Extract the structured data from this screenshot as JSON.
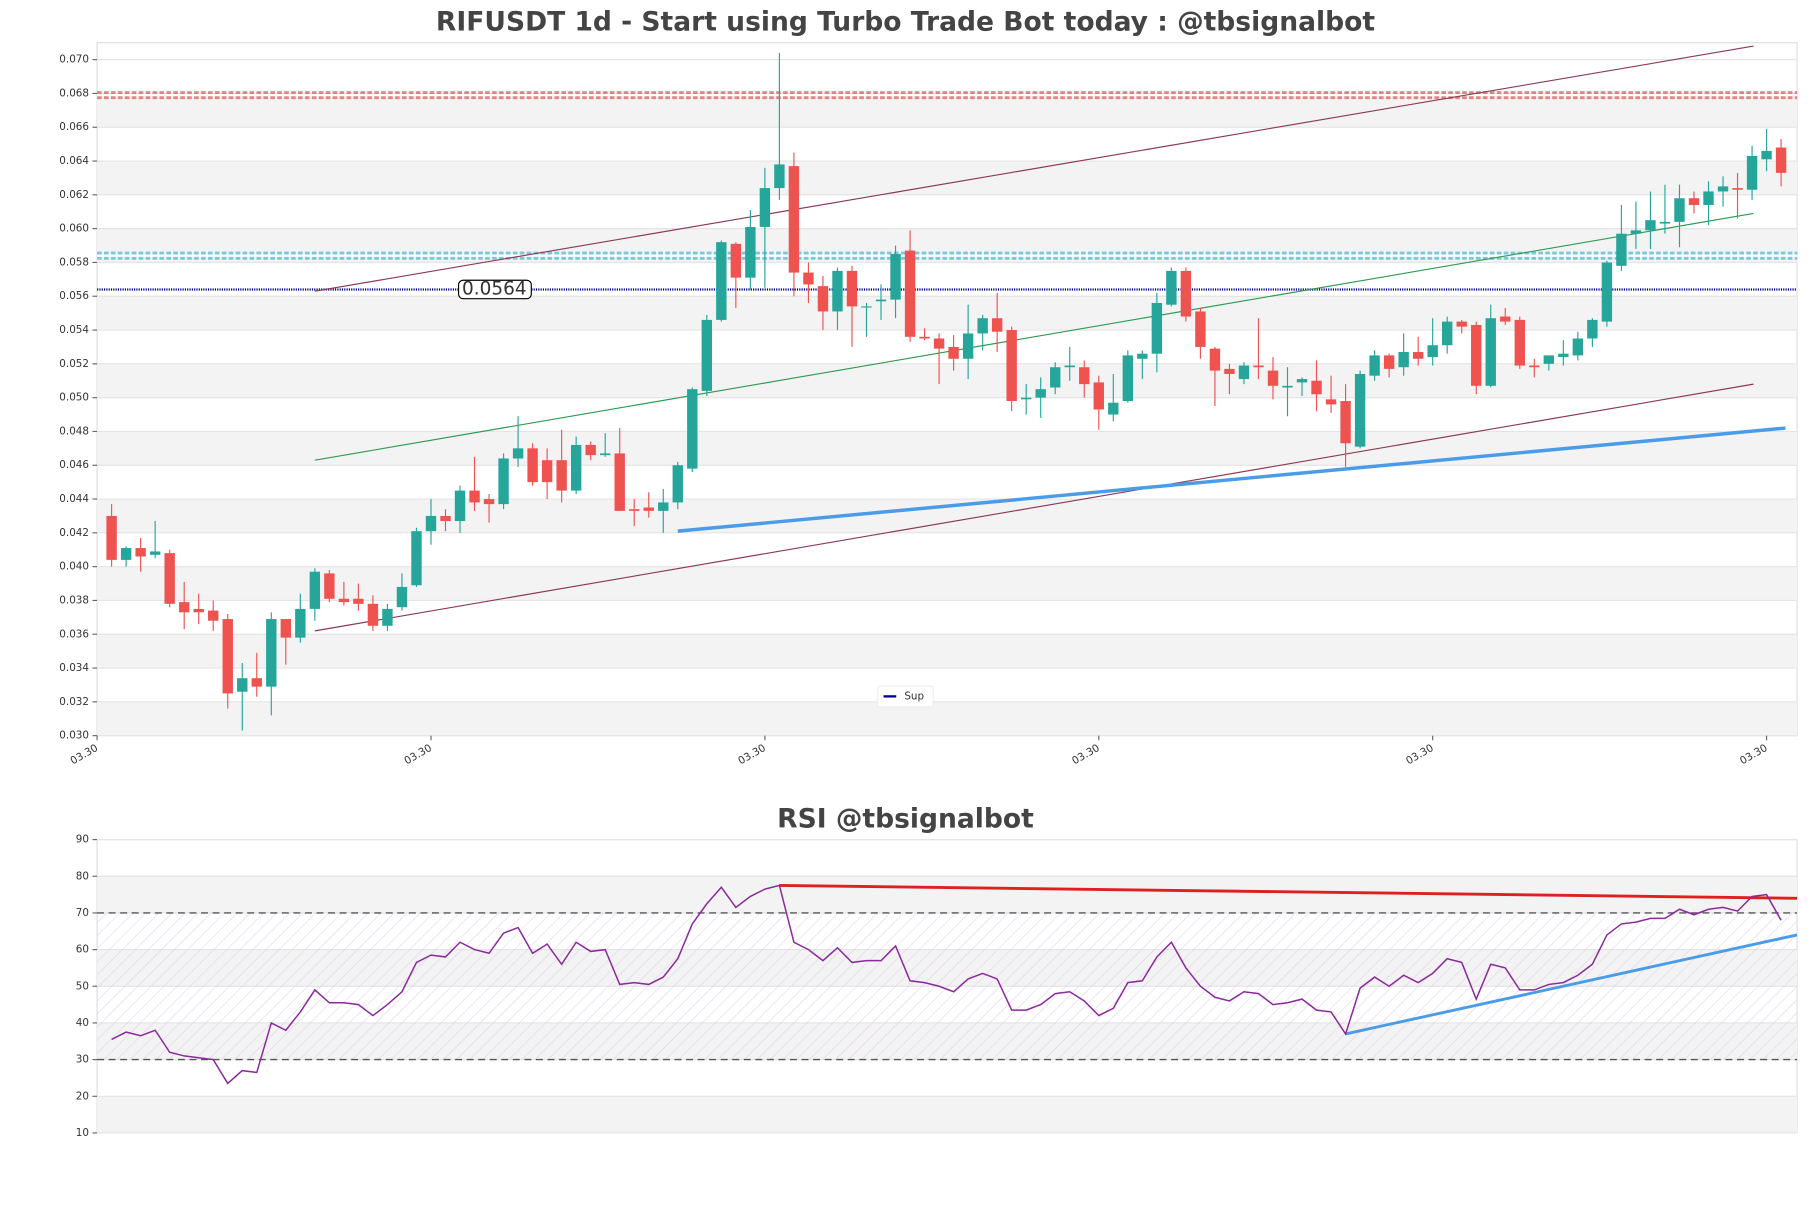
{
  "chart_data": [
    {
      "type": "candlestick",
      "title": "RIFUSDT 1d - Start using Turbo Trade Bot today : @tbsignalbot",
      "up_color": "#26a69a",
      "down_color": "#ef5350",
      "open": [
        0.043,
        0.0404,
        0.0411,
        0.0407,
        0.0408,
        0.0379,
        0.0375,
        0.0374,
        0.0369,
        0.0326,
        0.0334,
        0.0329,
        0.0369,
        0.0358,
        0.0375,
        0.0396,
        0.0381,
        0.0381,
        0.0378,
        0.0365,
        0.0376,
        0.0389,
        0.0421,
        0.043,
        0.0427,
        0.0445,
        0.044,
        0.0437,
        0.0464,
        0.047,
        0.0463,
        0.0463,
        0.0445,
        0.0472,
        0.0466,
        0.0467,
        0.0434,
        0.0435,
        0.0433,
        0.0438,
        0.0458,
        0.0504,
        0.0546,
        0.0591,
        0.0571,
        0.0601,
        0.0624,
        0.0637,
        0.0574,
        0.0566,
        0.0551,
        0.0575,
        0.0554,
        0.0557,
        0.0558,
        0.0587,
        0.0536,
        0.0535,
        0.053,
        0.0523,
        0.0538,
        0.0547,
        0.054,
        0.0499,
        0.05,
        0.0506,
        0.0518,
        0.0518,
        0.0509,
        0.049,
        0.0498,
        0.0523,
        0.0526,
        0.0555,
        0.0575,
        0.0551,
        0.0529,
        0.0517,
        0.0511,
        0.0519,
        0.0516,
        0.0506,
        0.0509,
        0.051,
        0.0499,
        0.0498,
        0.0471,
        0.0513,
        0.0525,
        0.0518,
        0.0527,
        0.0524,
        0.0531,
        0.0545,
        0.0543,
        0.0507,
        0.0548,
        0.0546,
        0.0519,
        0.052,
        0.0524,
        0.0525,
        0.0535,
        0.0545,
        0.0578,
        0.0597,
        0.0599,
        0.0603,
        0.0604,
        0.0618,
        0.0614,
        0.0622,
        0.0624,
        0.0623,
        0.0641,
        0.0648
      ],
      "high": [
        0.0437,
        0.0412,
        0.0417,
        0.0427,
        0.041,
        0.0391,
        0.0384,
        0.038,
        0.0372,
        0.0343,
        0.0349,
        0.0373,
        0.0369,
        0.0384,
        0.0399,
        0.0398,
        0.0391,
        0.039,
        0.0383,
        0.0378,
        0.0396,
        0.0423,
        0.044,
        0.0434,
        0.0448,
        0.0465,
        0.0443,
        0.0467,
        0.0489,
        0.0473,
        0.047,
        0.0481,
        0.0477,
        0.0474,
        0.0479,
        0.0482,
        0.044,
        0.0444,
        0.0446,
        0.0462,
        0.0506,
        0.0549,
        0.0593,
        0.0592,
        0.0611,
        0.0636,
        0.0704,
        0.0645,
        0.058,
        0.0572,
        0.0577,
        0.0578,
        0.0556,
        0.0567,
        0.059,
        0.0599,
        0.0541,
        0.0538,
        0.0537,
        0.0555,
        0.0549,
        0.0562,
        0.0542,
        0.0508,
        0.0512,
        0.0521,
        0.053,
        0.0522,
        0.0513,
        0.0514,
        0.0528,
        0.0528,
        0.0562,
        0.0577,
        0.0577,
        0.0553,
        0.053,
        0.052,
        0.0521,
        0.0547,
        0.0524,
        0.0518,
        0.0512,
        0.0522,
        0.0513,
        0.0508,
        0.0516,
        0.0528,
        0.0526,
        0.0538,
        0.0536,
        0.0547,
        0.0548,
        0.0546,
        0.0545,
        0.0555,
        0.0553,
        0.0548,
        0.0523,
        0.0525,
        0.0534,
        0.0539,
        0.0547,
        0.0581,
        0.0614,
        0.0616,
        0.0622,
        0.0626,
        0.0626,
        0.0622,
        0.0628,
        0.0631,
        0.0633,
        0.0649,
        0.0659,
        0.0653
      ],
      "low": [
        0.04,
        0.04,
        0.0397,
        0.0405,
        0.0376,
        0.0363,
        0.0366,
        0.0362,
        0.0316,
        0.0303,
        0.0323,
        0.0312,
        0.0342,
        0.0355,
        0.0368,
        0.0379,
        0.0377,
        0.0374,
        0.0362,
        0.0362,
        0.0374,
        0.0388,
        0.0413,
        0.0421,
        0.042,
        0.0433,
        0.0426,
        0.0434,
        0.0459,
        0.0448,
        0.044,
        0.0438,
        0.0443,
        0.0463,
        0.0465,
        0.0433,
        0.0424,
        0.0429,
        0.042,
        0.0434,
        0.0456,
        0.0501,
        0.0545,
        0.0553,
        0.0564,
        0.0565,
        0.0617,
        0.056,
        0.0556,
        0.054,
        0.054,
        0.053,
        0.0536,
        0.0546,
        0.0547,
        0.0533,
        0.0534,
        0.0508,
        0.0516,
        0.0511,
        0.0528,
        0.0527,
        0.0492,
        0.049,
        0.0488,
        0.0502,
        0.051,
        0.05,
        0.0481,
        0.0486,
        0.0497,
        0.0511,
        0.0515,
        0.0554,
        0.0545,
        0.0523,
        0.0495,
        0.0502,
        0.0508,
        0.0511,
        0.0499,
        0.0489,
        0.0501,
        0.0492,
        0.0491,
        0.0459,
        0.047,
        0.051,
        0.0512,
        0.0513,
        0.0519,
        0.0519,
        0.0526,
        0.0538,
        0.0502,
        0.0506,
        0.0543,
        0.0517,
        0.0512,
        0.0516,
        0.0519,
        0.0522,
        0.053,
        0.0542,
        0.0575,
        0.0588,
        0.0588,
        0.0597,
        0.0589,
        0.0609,
        0.0602,
        0.0613,
        0.0606,
        0.0617,
        0.0634,
        0.0625
      ],
      "close": [
        0.0404,
        0.0411,
        0.0406,
        0.0409,
        0.0378,
        0.0373,
        0.0373,
        0.0368,
        0.0325,
        0.0334,
        0.0329,
        0.0369,
        0.0358,
        0.0375,
        0.0397,
        0.0381,
        0.0379,
        0.0378,
        0.0365,
        0.0375,
        0.0388,
        0.0421,
        0.043,
        0.0427,
        0.0445,
        0.0438,
        0.0437,
        0.0464,
        0.047,
        0.045,
        0.045,
        0.0445,
        0.0472,
        0.0466,
        0.0467,
        0.0433,
        0.0433,
        0.0433,
        0.0438,
        0.046,
        0.0505,
        0.0546,
        0.0592,
        0.0571,
        0.0601,
        0.0624,
        0.0638,
        0.0574,
        0.0567,
        0.0551,
        0.0575,
        0.0554,
        0.0554,
        0.0558,
        0.0585,
        0.0536,
        0.0535,
        0.0529,
        0.0523,
        0.0538,
        0.0547,
        0.0539,
        0.0498,
        0.05,
        0.0505,
        0.0518,
        0.0519,
        0.0508,
        0.0493,
        0.0497,
        0.0525,
        0.0526,
        0.0556,
        0.0575,
        0.0548,
        0.053,
        0.0516,
        0.0514,
        0.0519,
        0.0518,
        0.0507,
        0.0507,
        0.0511,
        0.0502,
        0.0496,
        0.0473,
        0.0514,
        0.0525,
        0.0517,
        0.0527,
        0.0523,
        0.0531,
        0.0545,
        0.0542,
        0.0507,
        0.0547,
        0.0545,
        0.0519,
        0.0518,
        0.0525,
        0.0526,
        0.0535,
        0.0546,
        0.058,
        0.0597,
        0.0599,
        0.0605,
        0.0604,
        0.0618,
        0.0614,
        0.0622,
        0.0625,
        0.0623,
        0.0643,
        0.0646,
        0.0633
      ],
      "xlim": [
        -1,
        116.1
      ],
      "xticks": [
        {
          "value": -1,
          "label": "03.30"
        },
        {
          "value": 22,
          "label": "03.30"
        },
        {
          "value": 45,
          "label": "03.30"
        },
        {
          "value": 68,
          "label": "03.30"
        },
        {
          "value": 91,
          "label": "03.30"
        },
        {
          "value": 114,
          "label": "03.30"
        }
      ],
      "ylim": [
        0.03,
        0.071
      ],
      "yticks": [
        {
          "value": 0.03,
          "label": "0.030"
        },
        0.032,
        0.034,
        0.036,
        0.038,
        {
          "value": 0.04,
          "label": "0.040"
        },
        0.042,
        0.044,
        0.046,
        0.048,
        {
          "value": 0.05,
          "label": "0.050"
        },
        0.052,
        0.054,
        0.056,
        0.058,
        {
          "value": 0.06,
          "label": "0.060"
        },
        0.062,
        0.064,
        0.066,
        0.068,
        {
          "value": 0.07,
          "label": "0.070"
        }
      ],
      "hlines": [
        {
          "value": 0.0679,
          "color": "#d62728"
        },
        {
          "value": 0.0584,
          "color": "#17a2c8"
        },
        {
          "value": 0.0564,
          "color": "#00008b",
          "name": "Sup"
        }
      ],
      "trendlines": [
        {
          "x": [
            14,
            113.1
          ],
          "y": [
            0.0563,
            0.0708
          ],
          "color": "#8b3a52"
        },
        {
          "x": [
            14,
            113.1
          ],
          "y": [
            0.0362,
            0.0508
          ],
          "color": "#8b3a52"
        },
        {
          "x": [
            14,
            113.1
          ],
          "y": [
            0.0463,
            0.0609
          ],
          "color": "#2e9b4e"
        },
        {
          "x": [
            39,
            115.3
          ],
          "y": [
            0.0421,
            0.0482
          ],
          "color": "#4a9be8",
          "width": 3
        }
      ]
    },
    {
      "type": "line",
      "title": "RSI @tbsignalbot",
      "color": "#8b2a9b",
      "values": [
        35.5,
        37.5,
        36.5,
        38,
        32,
        31,
        30.5,
        30,
        23.5,
        27,
        26.5,
        40,
        38,
        43,
        49,
        45.5,
        45.5,
        45,
        42,
        45,
        48.5,
        56.5,
        58.5,
        58,
        62,
        60,
        59,
        64.5,
        66,
        59,
        61.5,
        56,
        62,
        59.5,
        60,
        50.5,
        51,
        50.5,
        52.5,
        57.5,
        67,
        72.5,
        77,
        71.5,
        74.5,
        76.5,
        77.5,
        62,
        60,
        57,
        60.5,
        56.5,
        57,
        57,
        61,
        51.5,
        51,
        50,
        48.5,
        52,
        53.5,
        52,
        43.5,
        43.5,
        45,
        48,
        48.5,
        46,
        42,
        44,
        51,
        51.5,
        58,
        62,
        55,
        50,
        47,
        46,
        48.5,
        48,
        45,
        45.5,
        46.5,
        43.5,
        43,
        37,
        49.5,
        52.5,
        50,
        53,
        51,
        53.5,
        57.5,
        56.5,
        46.5,
        56,
        55,
        49,
        49,
        50.5,
        51,
        53,
        56,
        64,
        67,
        67.5,
        68.5,
        68.5,
        71,
        69.5,
        71,
        71.5,
        70.5,
        74.5,
        75,
        68
      ],
      "xlim": [
        -1,
        116.1
      ],
      "ylim": [
        10,
        90
      ],
      "yticks": [
        10,
        20,
        30,
        40,
        50,
        60,
        70,
        80,
        90
      ],
      "hlines": [
        {
          "value": 70,
          "color": "#555"
        },
        {
          "value": 30,
          "color": "#555"
        }
      ],
      "trendlines": [
        {
          "x": [
            46,
            116.1
          ],
          "y": [
            77.5,
            74
          ],
          "color": "#e02020"
        },
        {
          "x": [
            85,
            116.1
          ],
          "y": [
            37,
            64
          ],
          "color": "#4a9be8"
        }
      ]
    }
  ]
}
